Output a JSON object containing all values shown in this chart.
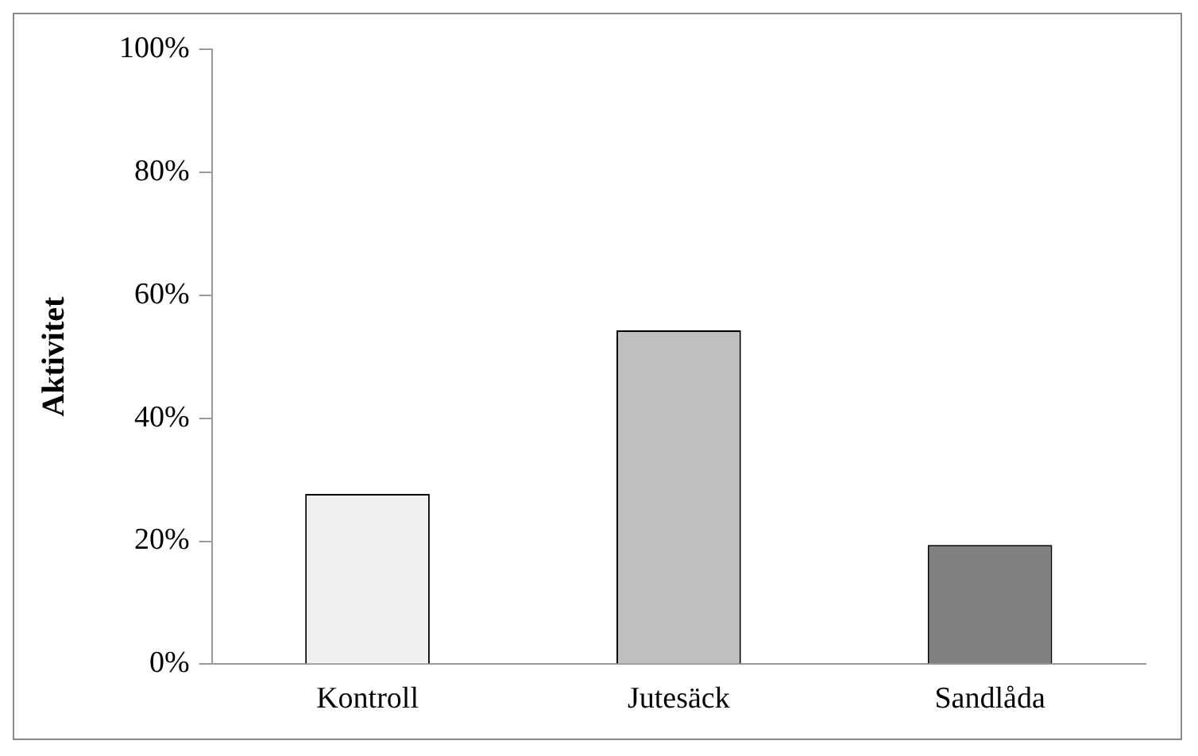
{
  "chart_data": {
    "type": "bar",
    "ylabel": "Aktivitet",
    "categories": [
      "Kontroll",
      "Jutesäck",
      "Sandlåda"
    ],
    "values": [
      27.7,
      54.3,
      19.4
    ],
    "colors": [
      "#f0f0f0",
      "#bfbfbf",
      "#808080"
    ],
    "ylim": [
      0,
      100
    ],
    "yticks": [
      {
        "value": 0,
        "label": "0%"
      },
      {
        "value": 20,
        "label": "20%"
      },
      {
        "value": 40,
        "label": "40%"
      },
      {
        "value": 60,
        "label": "60%"
      },
      {
        "value": 80,
        "label": "80%"
      },
      {
        "value": 100,
        "label": "100%"
      }
    ],
    "grid": false,
    "legend": false
  }
}
